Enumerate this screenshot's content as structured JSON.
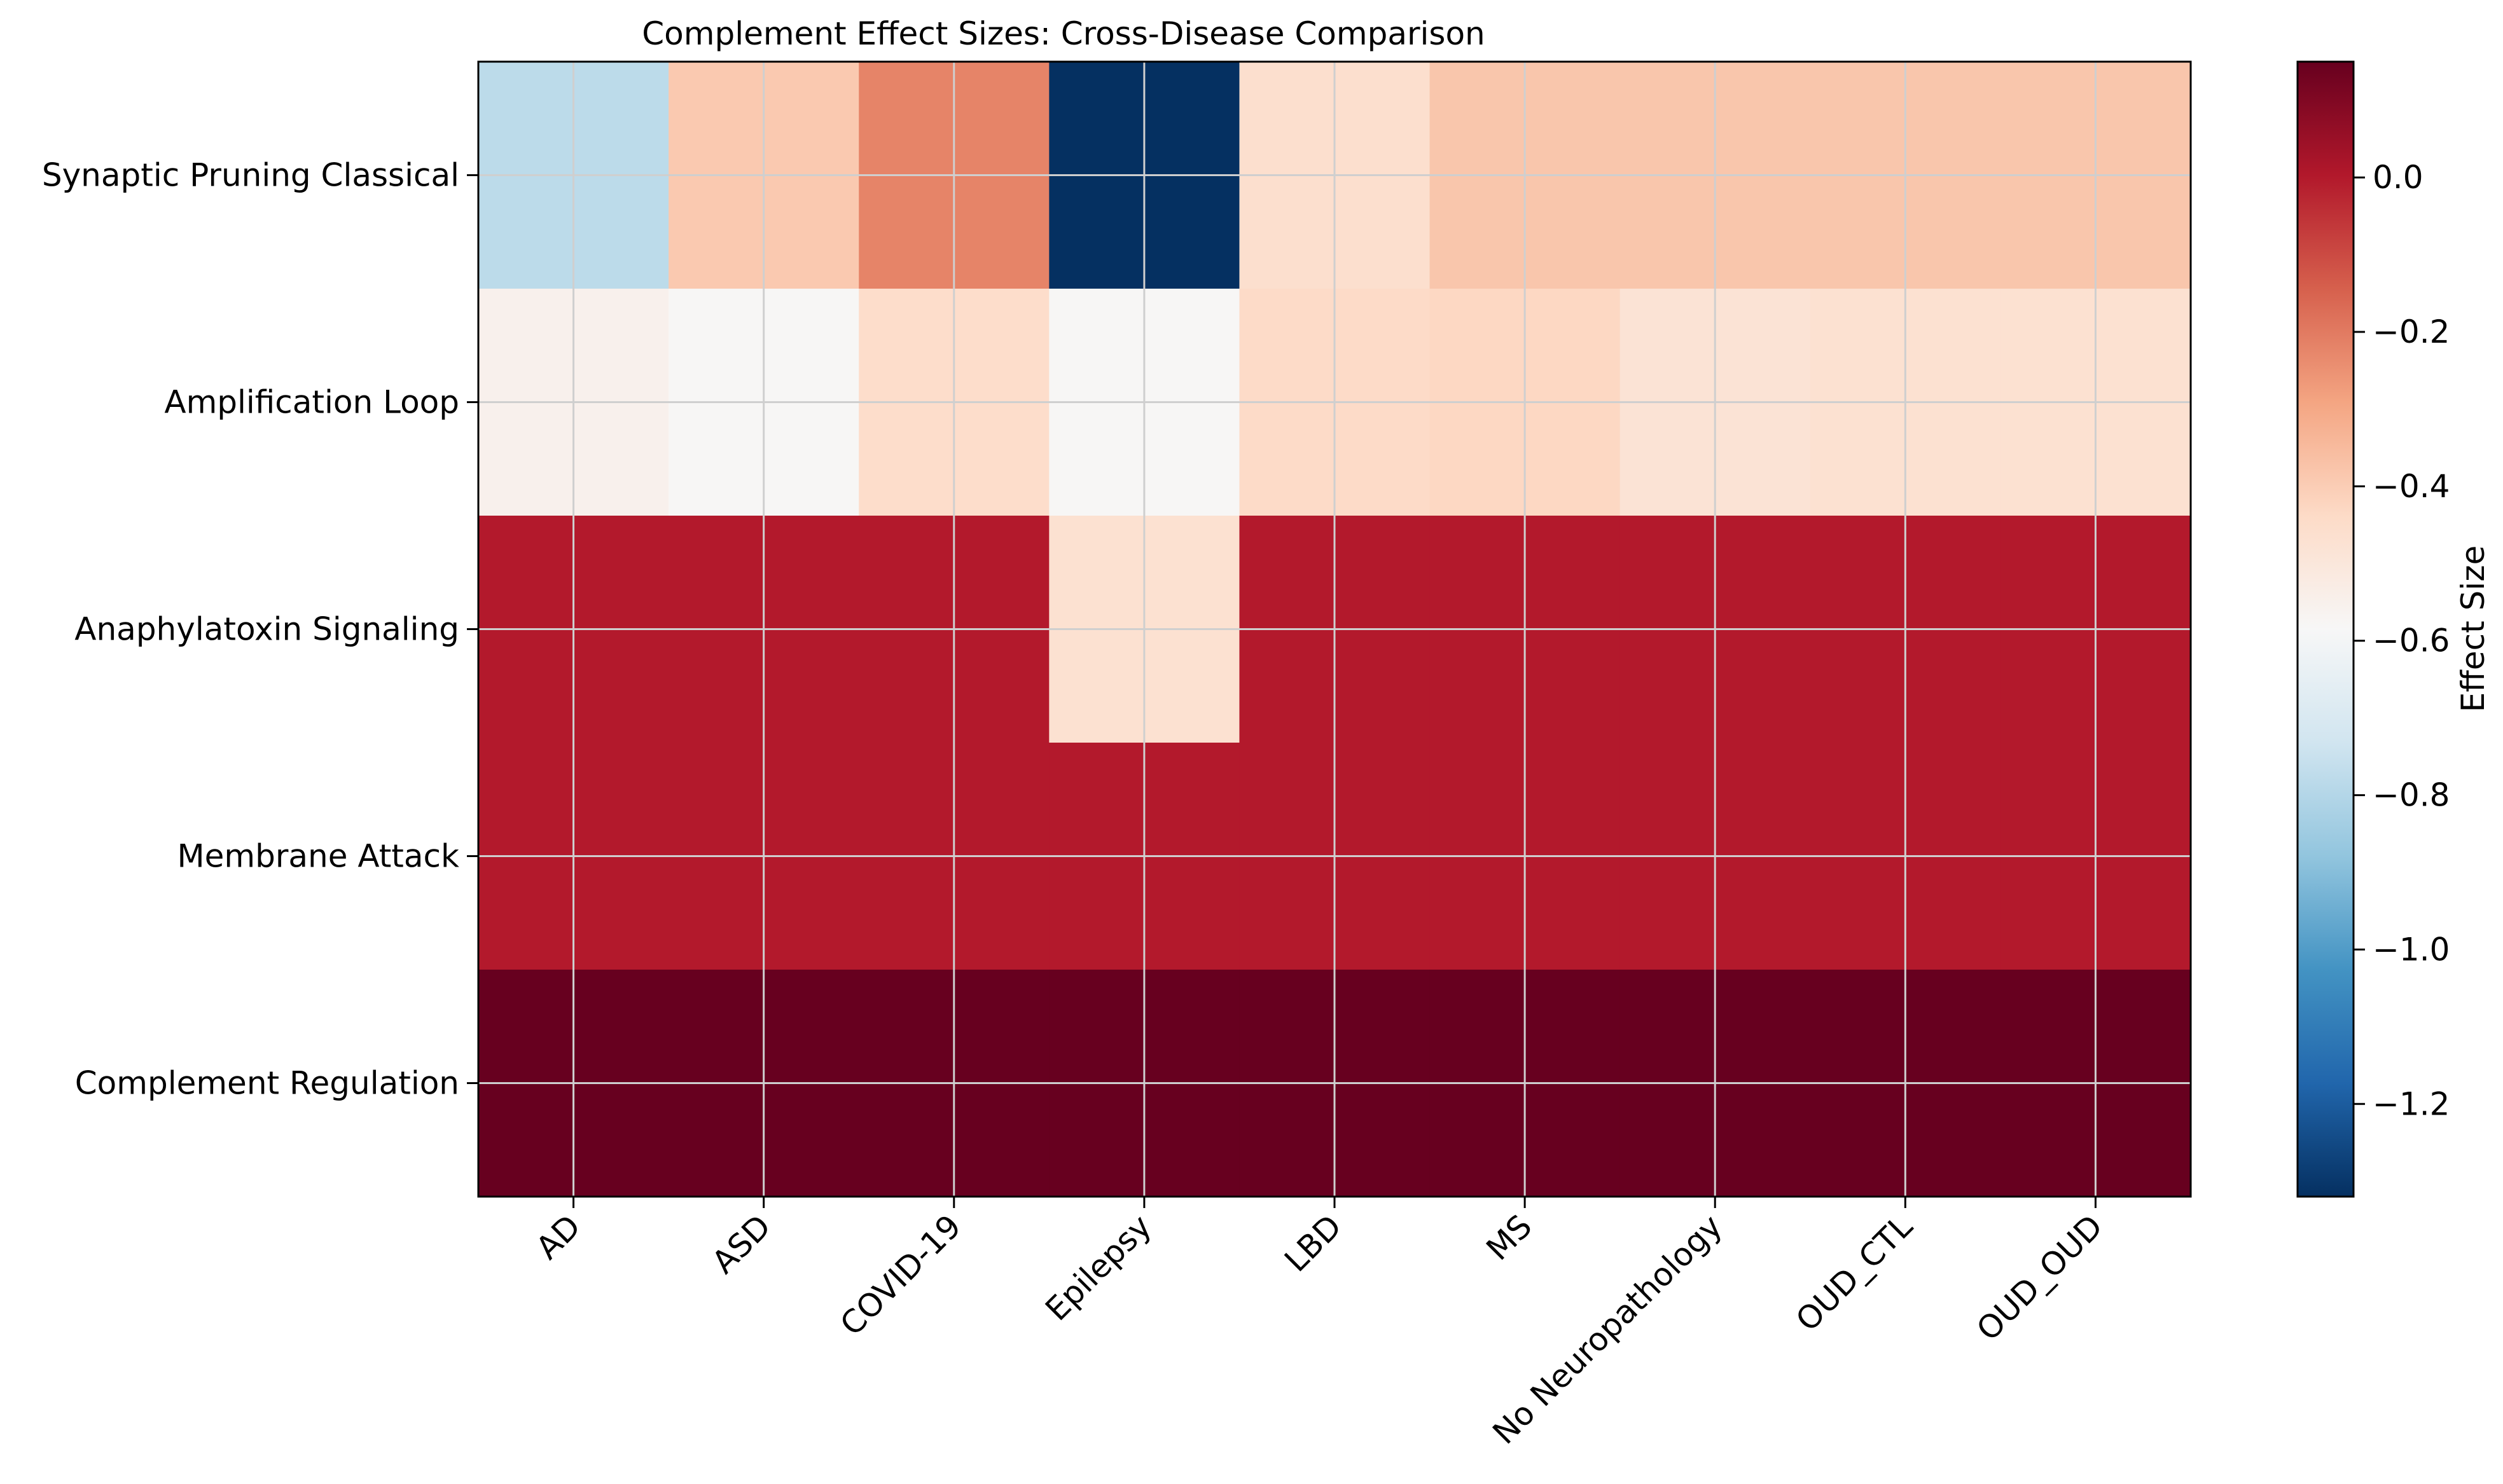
{
  "chart_data": {
    "type": "heatmap",
    "title": "Complement Effect Sizes: Cross-Disease Comparison",
    "xlabel": "",
    "ylabel": "",
    "x_categories": [
      "AD",
      "ASD",
      "COVID-19",
      "Epilepsy",
      "LBD",
      "MS",
      "No Neuropathology",
      "OUD_CTL",
      "OUD_OUD"
    ],
    "y_categories": [
      "Synaptic Pruning Classical",
      "Amplification Loop",
      "Anaphylatoxin Signaling",
      "Membrane Attack",
      "Complement Regulation"
    ],
    "values": [
      [
        -0.78,
        -0.39,
        -0.22,
        -1.32,
        -0.46,
        -0.38,
        -0.38,
        -0.38,
        -0.38
      ],
      [
        -0.55,
        -0.58,
        -0.45,
        -0.58,
        -0.44,
        -0.43,
        -0.48,
        -0.47,
        -0.47
      ],
      [
        0.0,
        0.0,
        0.0,
        -0.47,
        0.0,
        0.0,
        0.0,
        0.0,
        0.0
      ],
      [
        0.0,
        0.0,
        0.0,
        0.0,
        0.0,
        0.0,
        0.0,
        0.0,
        0.0
      ],
      [
        0.15,
        0.15,
        0.15,
        0.15,
        0.15,
        0.15,
        0.15,
        0.15,
        0.15
      ]
    ],
    "colorscale": "RdBu_r",
    "vmin": -1.32,
    "vmax": 0.15,
    "colorbar": {
      "label": "Effect Size",
      "ticks": [
        0.0,
        -0.2,
        -0.4,
        -0.6,
        -0.8,
        -1.0,
        -1.2
      ],
      "tick_labels": [
        "0.0",
        "−0.2",
        "−0.4",
        "−0.6",
        "−0.8",
        "−1.0",
        "−1.2"
      ]
    },
    "grid": true
  }
}
